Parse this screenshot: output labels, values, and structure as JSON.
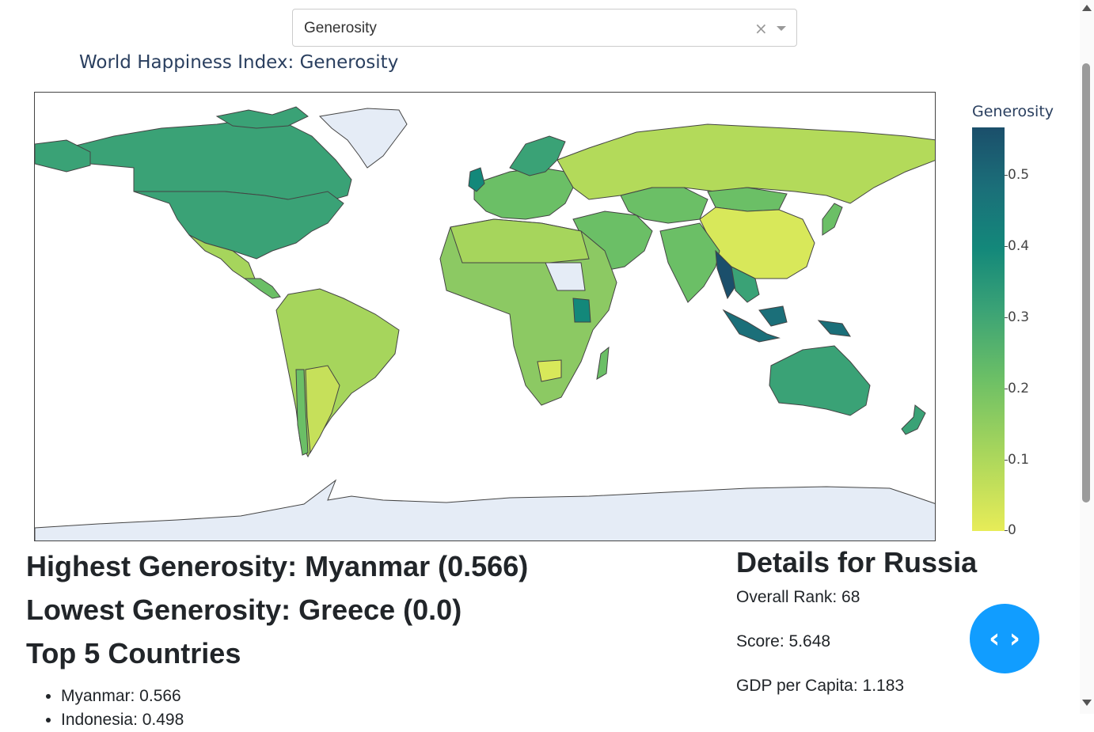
{
  "dropdown": {
    "selected": "Generosity",
    "clear_icon": "×",
    "arrow_icon": "chevron-down-icon"
  },
  "map": {
    "title": "World Happiness Index: Generosity",
    "colorbar": {
      "title": "Generosity",
      "ticks": [
        "0.5",
        "0.4",
        "0.3",
        "0.2",
        "0.1",
        "0"
      ],
      "range": [
        0,
        0.566
      ],
      "colors": [
        "#e7ec58",
        "#a6d55c",
        "#6bbf66",
        "#3aa276",
        "#13887a",
        "#1b4f6b"
      ]
    }
  },
  "stats": {
    "highest": "Highest Generosity: Myanmar (0.566)",
    "lowest": "Lowest Generosity: Greece (0.0)",
    "top5_heading": "Top 5 Countries",
    "top5": [
      "Myanmar: 0.566",
      "Indonesia: 0.498"
    ]
  },
  "details": {
    "heading": "Details for Russia",
    "rank": "Overall Rank: 68",
    "score": "Score: 5.648",
    "gdp": "GDP per Capita: 1.183"
  },
  "code_button": {
    "icon": "code-icon",
    "label": "‹ ›"
  }
}
